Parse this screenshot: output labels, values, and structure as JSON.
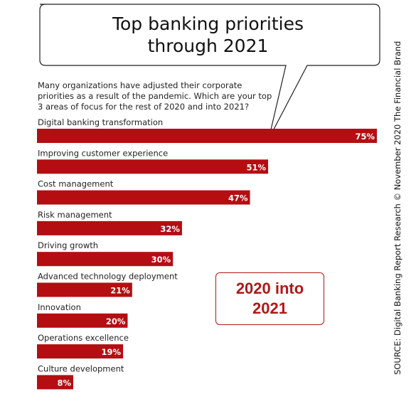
{
  "colors": {
    "bar": "#b40e12",
    "callout": "#b01818"
  },
  "chart_data": {
    "type": "bar",
    "orientation": "horizontal",
    "title_lines": [
      "Top banking priorities",
      "through 2021"
    ],
    "subtitle": "Many organizations have adjusted their corporate priorities as a result of the pandemic. Which are your top 3 areas of focus for the rest of 2020 and into 2021?",
    "categories": [
      "Digital banking transformation",
      "Improving customer experience",
      "Cost management",
      "Risk management",
      "Driving growth",
      "Advanced technology deployment",
      "Innovation",
      "Operations excellence",
      "Culture development"
    ],
    "values": [
      75,
      51,
      47,
      32,
      30,
      21,
      20,
      19,
      8
    ],
    "value_labels": [
      "75%",
      "51%",
      "47%",
      "32%",
      "30%",
      "21%",
      "20%",
      "19%",
      "8%"
    ],
    "xlim": [
      0,
      75
    ],
    "grid": false,
    "legend": false
  },
  "callout": {
    "text": "2020 into\n2021"
  },
  "source": "SOURCE: Digital Banking Report Research © November 2020 The Financial Brand"
}
